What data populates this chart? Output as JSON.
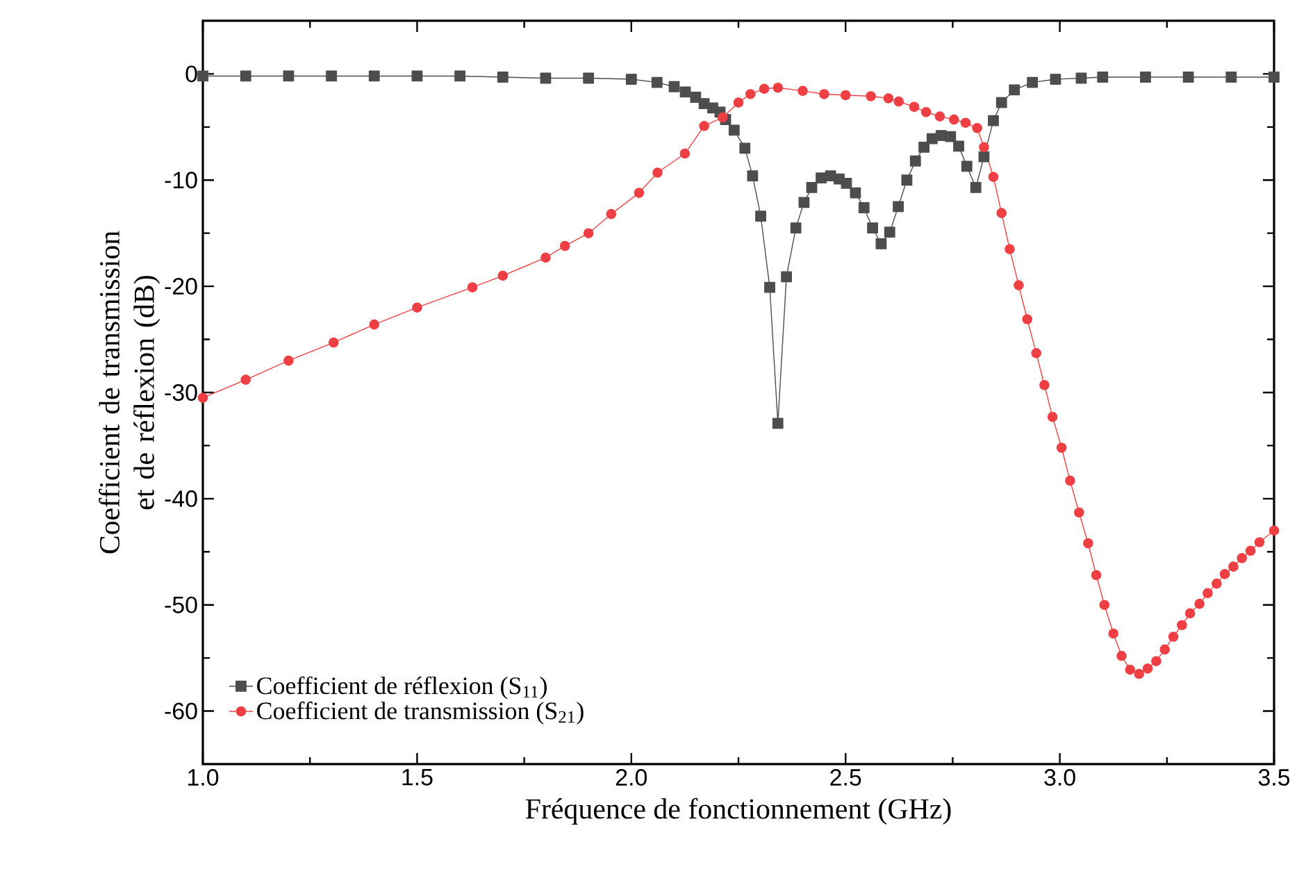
{
  "chart_data": {
    "type": "line",
    "xlabel": "Fréquence de fonctionnement (GHz)",
    "ylabel": "Coefficient de transmission et de réflexion (dB)",
    "xlim": [
      1.0,
      3.5
    ],
    "ylim": [
      -65,
      5
    ],
    "xticks": [
      {
        "value": 1.0,
        "label": "1.0"
      },
      {
        "value": 1.5,
        "label": "1.5"
      },
      {
        "value": 2.0,
        "label": "2.0"
      },
      {
        "value": 2.5,
        "label": "2.5"
      },
      {
        "value": 3.0,
        "label": "3.0"
      },
      {
        "value": 3.5,
        "label": "3.5"
      }
    ],
    "yticks": [
      0,
      -10,
      -20,
      -30,
      -40,
      -50,
      -60
    ],
    "grid": false,
    "legend": "bottom left",
    "series": [
      {
        "name": "Coefficient de réflexion (S$_{11}$)",
        "color": "#4d4d4d",
        "marker": "square",
        "line_style": "solid",
        "x": [
          1.0,
          1.1,
          1.2,
          1.3,
          1.4,
          1.5,
          1.6,
          1.7,
          1.8,
          1.9,
          2.0,
          2.06,
          2.1,
          2.126,
          2.15,
          2.17,
          2.19,
          2.207,
          2.22,
          2.24,
          2.265,
          2.283,
          2.302,
          2.323,
          2.342,
          2.362,
          2.384,
          2.403,
          2.421,
          2.443,
          2.465,
          2.485,
          2.502,
          2.523,
          2.543,
          2.563,
          2.583,
          2.603,
          2.623,
          2.643,
          2.663,
          2.683,
          2.702,
          2.723,
          2.745,
          2.764,
          2.783,
          2.804,
          2.823,
          2.845,
          2.864,
          2.894,
          2.936,
          2.99,
          3.05,
          3.1,
          3.2,
          3.3,
          3.4,
          3.5
        ],
        "values": [
          -0.2,
          -0.2,
          -0.2,
          -0.2,
          -0.2,
          -0.2,
          -0.2,
          -0.3,
          -0.4,
          -0.4,
          -0.5,
          -0.8,
          -1.2,
          -1.7,
          -2.2,
          -2.8,
          -3.2,
          -3.6,
          -4.3,
          -5.3,
          -7.0,
          -9.6,
          -13.4,
          -20.1,
          -32.9,
          -19.1,
          -14.5,
          -12.1,
          -10.7,
          -9.8,
          -9.6,
          -9.9,
          -10.3,
          -11.2,
          -12.6,
          -14.5,
          -16.0,
          -14.9,
          -12.5,
          -10.0,
          -8.2,
          -6.9,
          -6.1,
          -5.8,
          -5.9,
          -6.8,
          -8.7,
          -10.7,
          -7.8,
          -4.4,
          -2.7,
          -1.5,
          -0.8,
          -0.5,
          -0.4,
          -0.3,
          -0.3,
          -0.3,
          -0.3,
          -0.3
        ]
      },
      {
        "name": "Coefficient de transmission (S$_{21}$)",
        "color": "#ee4044",
        "marker": "circle",
        "line_style": "solid",
        "x": [
          1.0,
          1.1,
          1.2,
          1.305,
          1.4,
          1.5,
          1.629,
          1.7,
          1.8,
          1.845,
          1.9,
          1.953,
          2.018,
          2.061,
          2.125,
          2.17,
          2.213,
          2.25,
          2.278,
          2.31,
          2.342,
          2.4,
          2.45,
          2.5,
          2.559,
          2.6,
          2.624,
          2.66,
          2.688,
          2.72,
          2.753,
          2.78,
          2.807,
          2.823,
          2.845,
          2.864,
          2.883,
          2.904,
          2.924,
          2.945,
          2.964,
          2.983,
          3.004,
          3.024,
          3.045,
          3.066,
          3.085,
          3.104,
          3.125,
          3.144,
          3.164,
          3.185,
          3.205,
          3.225,
          3.245,
          3.265,
          3.285,
          3.304,
          3.326,
          3.345,
          3.366,
          3.385,
          3.405,
          3.425,
          3.445,
          3.466,
          3.5
        ],
        "values": [
          -30.5,
          -28.8,
          -27.0,
          -25.3,
          -23.6,
          -22.0,
          -20.1,
          -19.0,
          -17.3,
          -16.2,
          -15.0,
          -13.2,
          -11.2,
          -9.3,
          -7.5,
          -4.9,
          -4.1,
          -2.7,
          -1.9,
          -1.4,
          -1.3,
          -1.6,
          -1.9,
          -2.0,
          -2.1,
          -2.3,
          -2.6,
          -3.1,
          -3.6,
          -4.0,
          -4.3,
          -4.6,
          -5.1,
          -6.9,
          -9.7,
          -13.1,
          -16.5,
          -19.9,
          -23.1,
          -26.3,
          -29.3,
          -32.3,
          -35.2,
          -38.3,
          -41.3,
          -44.2,
          -47.2,
          -50.0,
          -52.7,
          -54.8,
          -56.1,
          -56.5,
          -56.0,
          -55.3,
          -54.2,
          -53.0,
          -51.9,
          -50.8,
          -49.9,
          -48.9,
          -48.0,
          -47.1,
          -46.4,
          -45.6,
          -44.9,
          -44.1,
          -43.0
        ]
      }
    ]
  }
}
